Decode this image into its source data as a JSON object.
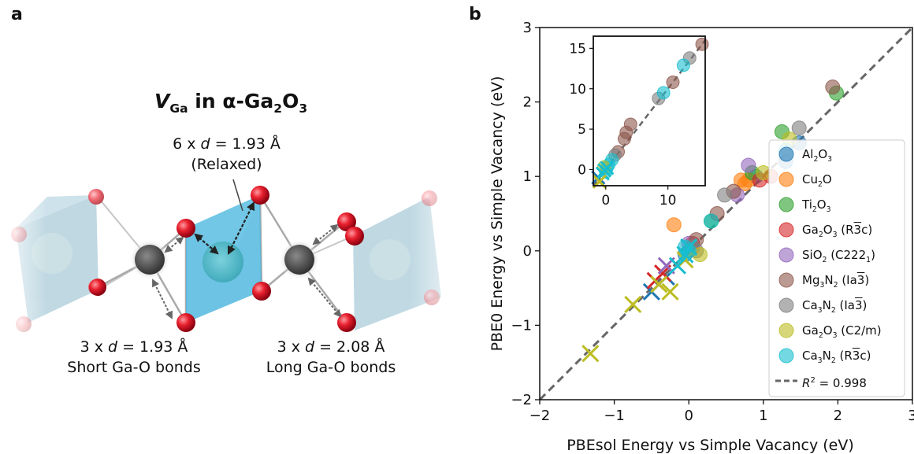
{
  "panel_a": {
    "letter": "a",
    "title": {
      "v": "V",
      "v_sub": "Ga",
      "middle": " in α-Ga",
      "sub1": "2",
      "o": "O",
      "sub2": "3"
    },
    "relaxed_line1_prefix": "6 x ",
    "relaxed_line1_d": "d",
    "relaxed_line1_suffix": " = 1.93 Å",
    "relaxed_line2": "(Relaxed)",
    "short_line1_prefix": "3 x ",
    "short_line1_d": "d",
    "short_line1_suffix": " = 1.93 Å",
    "short_line2": "Short Ga-O bonds",
    "long_line1_prefix": "3 x ",
    "long_line1_d": "d",
    "long_line1_suffix": " = 2.08 Å",
    "long_line2": "Long Ga-O bonds"
  },
  "panel_b": {
    "letter": "b"
  },
  "chart_data": {
    "type": "scatter",
    "xlabel": "PBEsol Energy vs Simple Vacancy (eV)",
    "ylabel": "PBE0 Energy vs Simple Vacancy (eV)",
    "xlim": [
      -2,
      3
    ],
    "ylim": [
      -2,
      3
    ],
    "xticks": [
      -2,
      -1,
      0,
      1,
      2,
      3
    ],
    "yticks": [
      -2,
      -1,
      0,
      1,
      2,
      3
    ],
    "legend_position": "right",
    "series": [
      {
        "name": "Al2O3",
        "label_html": "Al<sub>2</sub>O<sub>3</sub>",
        "color": "#1f77b4",
        "points": [
          [
            1.48,
            1.45
          ],
          [
            1.3,
            1.2
          ],
          [
            0.9,
            1.0
          ],
          [
            0.0,
            0.0
          ],
          [
            -0.05,
            -0.05
          ]
        ],
        "crosses": [
          [
            -0.5,
            -0.55
          ],
          [
            -0.3,
            -0.35
          ]
        ]
      },
      {
        "name": "Cu2O",
        "label_html": "Cu<sub>2</sub>O",
        "color": "#ff7f0e",
        "points": [
          [
            0.7,
            0.95
          ],
          [
            0.75,
            0.9
          ],
          [
            -0.2,
            0.35
          ],
          [
            0.8,
            0.95
          ]
        ],
        "crosses": []
      },
      {
        "name": "Ti2O3",
        "label_html": "Ti<sub>2</sub>O<sub>3</sub>",
        "color": "#2ca02c",
        "points": [
          [
            1.98,
            2.12
          ],
          [
            1.25,
            1.6
          ],
          [
            0.85,
            1.05
          ],
          [
            0.3,
            0.4
          ]
        ],
        "crosses": []
      },
      {
        "name": "Ga2O3 (R3c)",
        "label_html": "Ga<sub>2</sub>O<sub>3</sub> (R<span style=\"text-decoration:overline\">3</span>c)",
        "color": "#d62728",
        "points": [
          [
            0.95,
            0.95
          ],
          [
            0.05,
            0.1
          ],
          [
            1.1,
            1.0
          ]
        ],
        "crosses": [
          [
            -0.45,
            -0.4
          ],
          [
            -0.35,
            -0.3
          ]
        ]
      },
      {
        "name": "SiO2 (C2221)",
        "label_html": "SiO<sub>2</sub> (C222<sub>1</sub>)",
        "color": "#9467bd",
        "points": [
          [
            0.8,
            1.15
          ],
          [
            0.65,
            0.75
          ],
          [
            0.0,
            0.1
          ]
        ],
        "crosses": [
          [
            -0.3,
            -0.2
          ]
        ]
      },
      {
        "name": "Mg3N2 (Ia3)",
        "label_html": "Mg<sub>3</sub>N<sub>2</sub> (Ia<span style=\"text-decoration:overline\">3</span>)",
        "color": "#8c564b",
        "points": [
          [
            1.93,
            2.2
          ],
          [
            0.38,
            0.5
          ],
          [
            0.1,
            0.15
          ],
          [
            0.6,
            0.8
          ]
        ],
        "crosses": []
      },
      {
        "name": "Ca3N2 (Ia3)",
        "label_html": "Ca<sub>3</sub>N<sub>2</sub> (Ia<span style=\"text-decoration:overline\">3</span>)",
        "color": "#7f7f7f",
        "points": [
          [
            1.48,
            1.65
          ],
          [
            0.48,
            0.75
          ],
          [
            0.05,
            0.05
          ],
          [
            0.1,
            0.0
          ]
        ],
        "crosses": []
      },
      {
        "name": "Ga2O3 (C2/m)",
        "label_html": "Ga<sub>2</sub>O<sub>3</sub> (C2/m)",
        "color": "#bcbd22",
        "points": [
          [
            1.0,
            1.05
          ],
          [
            0.15,
            -0.05
          ],
          [
            1.35,
            1.5
          ]
        ],
        "crosses": [
          [
            -1.32,
            -1.38
          ],
          [
            -0.75,
            -0.72
          ],
          [
            -0.4,
            -0.45
          ],
          [
            -0.25,
            -0.55
          ],
          [
            -0.05,
            -0.12
          ]
        ]
      },
      {
        "name": "Ca3N2 (R3c)",
        "label_html": "Ca<sub>3</sub>N<sub>2</sub> (R<span style=\"text-decoration:overline\">3</span>c)",
        "color": "#17becf",
        "points": [
          [
            1.3,
            1.35
          ],
          [
            0.3,
            0.4
          ],
          [
            0.0,
            0.0
          ],
          [
            -0.05,
            0.05
          ]
        ],
        "crosses": [
          [
            -0.15,
            -0.2
          ],
          [
            -0.05,
            -0.05
          ],
          [
            0.0,
            0.05
          ]
        ]
      }
    ],
    "fit_line": {
      "label_prefix": "R",
      "label_sup": "2",
      "label_suffix": " = 0.998",
      "style": "dashed",
      "color": "#666666"
    },
    "inset": {
      "xlim": [
        -2,
        16
      ],
      "ylim": [
        -2,
        16.5
      ],
      "xticks": [
        0,
        10
      ],
      "yticks": [
        0,
        5,
        10,
        15
      ],
      "points": [
        {
          "x": 15.5,
          "y": 15.5,
          "color": "#8c564b"
        },
        {
          "x": 13.5,
          "y": 13.8,
          "color": "#7f7f7f"
        },
        {
          "x": 12.5,
          "y": 12.9,
          "color": "#17becf"
        },
        {
          "x": 10.8,
          "y": 10.8,
          "color": "#8c564b"
        },
        {
          "x": 8.5,
          "y": 8.8,
          "color": "#7f7f7f"
        },
        {
          "x": 9.3,
          "y": 9.5,
          "color": "#17becf"
        },
        {
          "x": 4.0,
          "y": 5.6,
          "color": "#8c564b"
        },
        {
          "x": 3.3,
          "y": 4.6,
          "color": "#8c564b"
        },
        {
          "x": 3.0,
          "y": 3.8,
          "color": "#8c564b"
        },
        {
          "x": 2.0,
          "y": 2.2,
          "color": "#8c564b"
        },
        {
          "x": 1.5,
          "y": 1.8,
          "color": "#7f7f7f"
        },
        {
          "x": 1.0,
          "y": 1.2,
          "color": "#17becf"
        },
        {
          "x": 0.5,
          "y": 0.6,
          "color": "#17becf"
        },
        {
          "x": 0.2,
          "y": 0.2,
          "color": "#17becf"
        },
        {
          "x": 0.0,
          "y": -0.3,
          "color": "#17becf"
        },
        {
          "x": -0.3,
          "y": 0.3,
          "color": "#bcbd22"
        }
      ],
      "crosses": [
        {
          "x": -1.2,
          "y": -1.0,
          "color": "#1f77b4"
        },
        {
          "x": -0.5,
          "y": -0.5,
          "color": "#17becf"
        },
        {
          "x": -0.2,
          "y": -0.1,
          "color": "#17becf"
        },
        {
          "x": 0.2,
          "y": 0.2,
          "color": "#17becf"
        },
        {
          "x": -1.0,
          "y": -1.5,
          "color": "#bcbd22"
        }
      ]
    }
  }
}
